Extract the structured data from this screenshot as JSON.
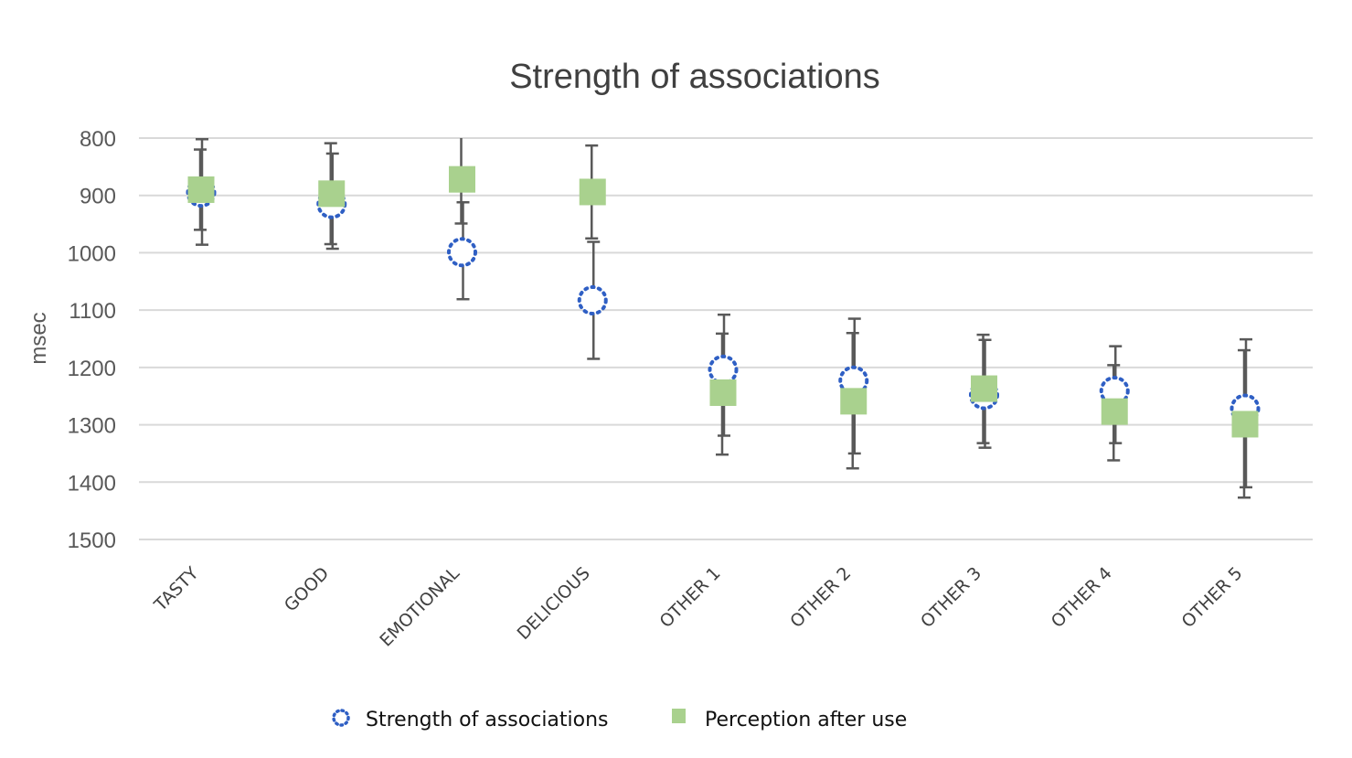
{
  "chart_data": {
    "type": "scatter",
    "title": "Strength of associations",
    "xlabel": "",
    "ylabel": "msec",
    "ylim": [
      800,
      1500
    ],
    "y_inverted": true,
    "yticks": [
      "800",
      "900",
      "1000",
      "1100",
      "1200",
      "1300",
      "1400",
      "1500"
    ],
    "grid": true,
    "legend_position": "bottom",
    "categories": [
      "TASTY",
      "GOOD",
      "EMOTIONAL",
      "DELICIOUS",
      "OTHER 1",
      "OTHER 2",
      "OTHER 3",
      "OTHER 4",
      "OTHER 5"
    ],
    "series": [
      {
        "name": "Strength of associations",
        "marker": "dotted-circle",
        "color": "#2f5fc4",
        "values": [
          895,
          915,
          999,
          1083,
          1204,
          1223,
          1248,
          1241,
          1272
        ],
        "error_low": [
          802,
          827,
          912,
          981,
          1108,
          1115,
          1152,
          1163,
          1151
        ],
        "error_high": [
          986,
          993,
          1081,
          1185,
          1319,
          1350,
          1340,
          1332,
          1409
        ]
      },
      {
        "name": "Perception after use",
        "marker": "square",
        "color": "#a9d18e",
        "values": [
          890,
          897,
          872,
          894,
          1244,
          1259,
          1237,
          1277,
          1299
        ],
        "error_low": [
          820,
          809,
          795,
          813,
          1141,
          1140,
          1143,
          1196,
          1170
        ],
        "error_high": [
          960,
          985,
          949,
          975,
          1352,
          1376,
          1332,
          1362,
          1427
        ]
      }
    ]
  }
}
